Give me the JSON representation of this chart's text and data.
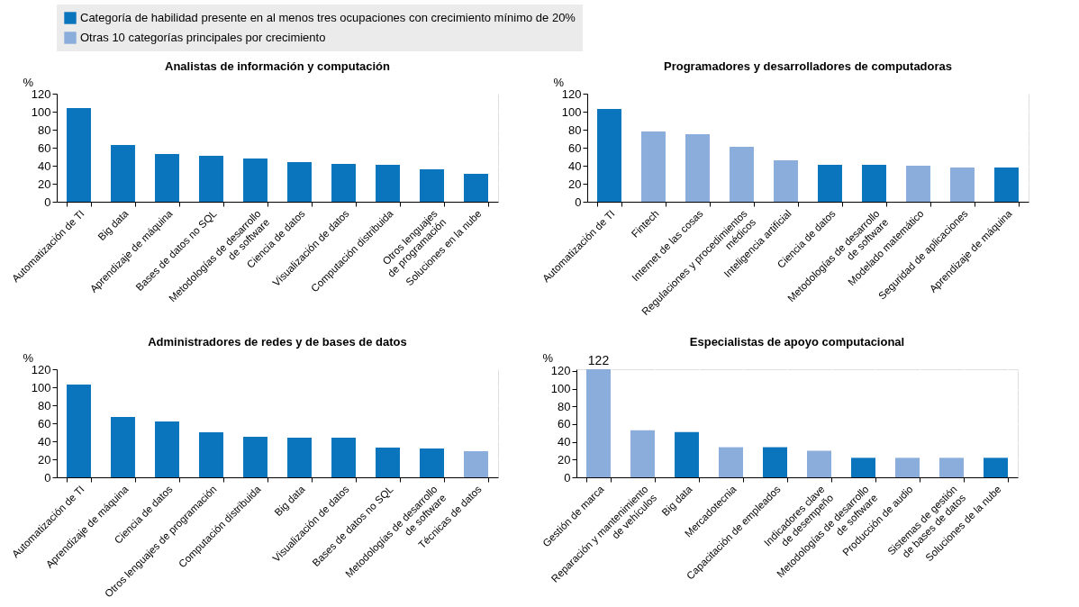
{
  "chart_data": [
    {
      "type": "bar",
      "title": "Analistas de información y computación",
      "ylabel": "%",
      "legend": "top",
      "grid": true,
      "ylim": [
        0,
        120
      ],
      "yticks": [
        0,
        20,
        40,
        60,
        80,
        100,
        120
      ],
      "categories": [
        "Automatización de TI",
        "Big data",
        "Aprendizaje de máquina",
        "Bases de datos no SQL",
        "Metodologías de desarrollo\nde software",
        "Ciencia de datos",
        "Visualización de datos",
        "Computación distribuida",
        "Otros lenguajes\nde programación",
        "Soluciones en la nube"
      ],
      "series": [
        {
          "name": "Categoría de habilidad presente en al menos tres ocupaciones con crecimiento mínimo de 20%",
          "color": "#0a75bc",
          "values": [
            104,
            63,
            53,
            51,
            48,
            44,
            42,
            41,
            36,
            31
          ]
        },
        {
          "name": "Otras 10 categorías principales por crecimiento",
          "color": "#8aaddc",
          "values": [
            null,
            null,
            null,
            null,
            null,
            null,
            null,
            null,
            null,
            null
          ]
        }
      ]
    },
    {
      "type": "bar",
      "title": "Programadores y desarrolladores de computadoras",
      "ylabel": "%",
      "grid": true,
      "ylim": [
        0,
        120
      ],
      "yticks": [
        0,
        20,
        40,
        60,
        80,
        100,
        120
      ],
      "categories": [
        "Automatización de TI",
        "Fintech",
        "Internet de las cosas",
        "Regulaciones y procedimientos\nmédicos",
        "Inteligencia artificial",
        "Ciencia de datos",
        "Metodologías de desarrollo\nde software",
        "Modelado matemático",
        "Seguridad de aplicaciones",
        "Aprendizaje de máquina"
      ],
      "series": [
        {
          "color": "#0a75bc",
          "values": [
            103,
            null,
            null,
            null,
            null,
            41,
            41,
            null,
            null,
            38
          ]
        },
        {
          "color": "#8aaddc",
          "values": [
            null,
            78,
            75,
            61,
            46,
            null,
            null,
            40,
            38,
            null
          ]
        }
      ]
    },
    {
      "type": "bar",
      "title": "Administradores de redes y de bases de datos",
      "ylabel": "%",
      "grid": true,
      "ylim": [
        0,
        120
      ],
      "yticks": [
        0,
        20,
        40,
        60,
        80,
        100,
        120
      ],
      "categories": [
        "Automatización de TI",
        "Aprendizaje de máquina",
        "Ciencia de datos",
        "Otros lenguajes de programación",
        "Computación distribuida",
        "Big data",
        "Visualización de datos",
        "Bases de datos no SQL",
        "Metodologías de desarrollo\nde software",
        "Técnicas de datos"
      ],
      "series": [
        {
          "color": "#0a75bc",
          "values": [
            103,
            67,
            62,
            50,
            45,
            44,
            44,
            33,
            32,
            null
          ]
        },
        {
          "color": "#8aaddc",
          "values": [
            null,
            null,
            null,
            null,
            null,
            null,
            null,
            null,
            null,
            29
          ]
        }
      ]
    },
    {
      "type": "bar",
      "title": "Especialistas de apoyo computacional",
      "ylabel": "%",
      "grid": true,
      "ylim": [
        0,
        122
      ],
      "yticks": [
        0,
        20,
        40,
        60,
        80,
        100,
        120
      ],
      "categories": [
        "Gestión de marca",
        "Reparación y mantenimiento\nde vehículos",
        "Big data",
        "Mercadotecnia",
        "Capacitación de empleados",
        "Indicadores clave\nde desempeño",
        "Metodologías de desarrollo\nde software",
        "Producción de audio",
        "Sistemas de gestión\nde bases de datos",
        "Soluciones de la nube"
      ],
      "series": [
        {
          "color": "#0a75bc",
          "values": [
            null,
            null,
            51,
            null,
            34,
            null,
            22,
            null,
            null,
            22
          ]
        },
        {
          "color": "#8aaddc",
          "values": [
            122,
            53,
            null,
            34,
            null,
            30,
            null,
            22,
            22,
            null
          ],
          "value_labels": [
            "122",
            null,
            null,
            null,
            null,
            null,
            null,
            null,
            null,
            null
          ]
        }
      ]
    }
  ]
}
